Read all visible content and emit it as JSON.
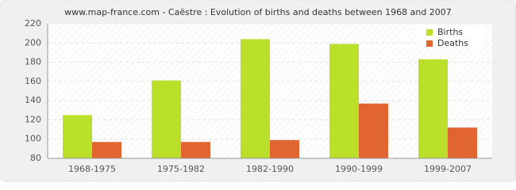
{
  "chart_data": {
    "type": "bar",
    "title": "www.map-france.com - Caëstre : Evolution of births and deaths between 1968 and 2007",
    "categories": [
      "1968-1975",
      "1975-1982",
      "1982-1990",
      "1990-1999",
      "1999-2007"
    ],
    "series": [
      {
        "name": "Births",
        "color": "#bbe02c",
        "values": [
          125,
          161,
          204,
          199,
          183
        ]
      },
      {
        "name": "Deaths",
        "color": "#e0652f",
        "values": [
          97,
          97,
          99,
          137,
          112
        ]
      }
    ],
    "ylim": [
      80,
      220
    ],
    "yticks": [
      80,
      100,
      120,
      140,
      160,
      180,
      200,
      220
    ],
    "grid": true,
    "legend": "top-right"
  }
}
